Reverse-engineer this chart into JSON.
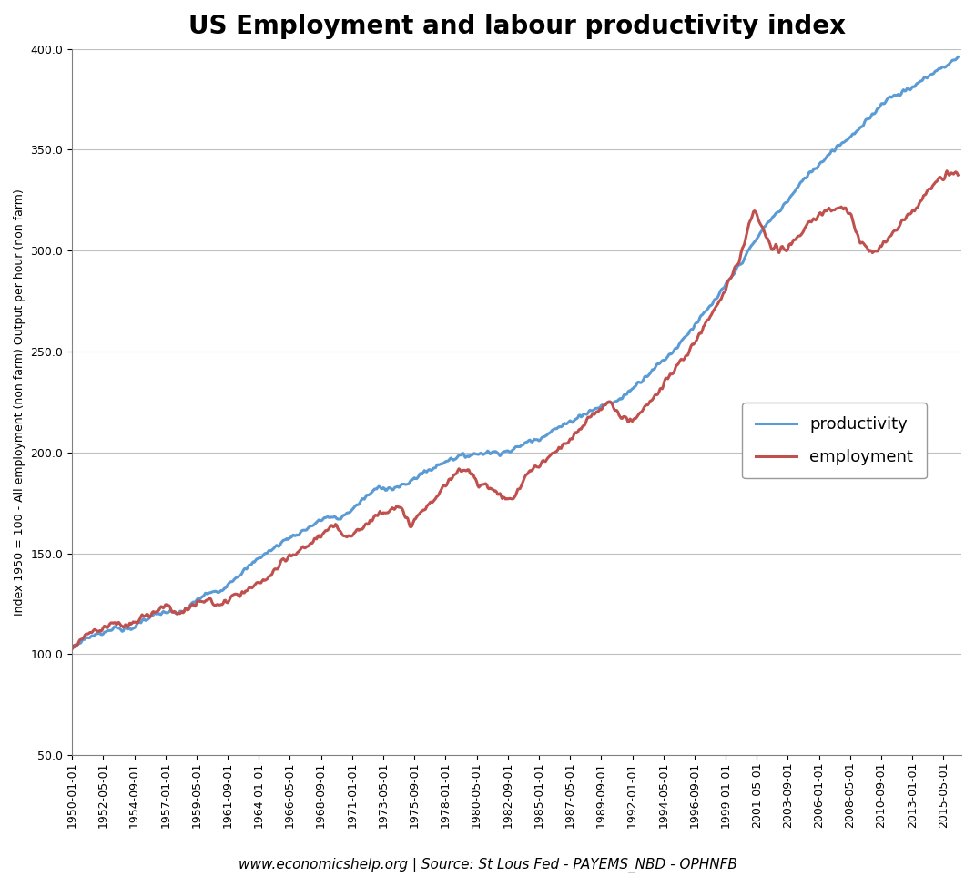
{
  "title": "US Employment and labour productivity index",
  "ylabel": "Index 1950 = 100 - All employment (non farm) Output per hour (non farm)",
  "xlabel_source": "www.economicshelp.org | Source: St Lous Fed - PAYEMS_NBD - OPHNFB",
  "ylim": [
    50.0,
    400.0
  ],
  "yticks": [
    50.0,
    100.0,
    150.0,
    200.0,
    250.0,
    300.0,
    350.0,
    400.0
  ],
  "productivity_color": "#5B9BD5",
  "employment_color": "#C0504D",
  "legend_labels": [
    "productivity",
    "employment"
  ],
  "background_color": "#FFFFFF",
  "grid_color": "#BFBFBF",
  "title_fontsize": 20,
  "label_fontsize": 9,
  "tick_fontsize": 9,
  "source_fontsize": 11,
  "xtick_labels": [
    "1950-01-01",
    "1952-05-01",
    "1954-09-01",
    "1957-01-01",
    "1959-05-01",
    "1961-09-01",
    "1964-01-01",
    "1966-05-01",
    "1968-09-01",
    "1971-01-01",
    "1973-05-01",
    "1975-09-01",
    "1978-01-01",
    "1980-05-01",
    "1982-09-01",
    "1985-01-01",
    "1987-05-01",
    "1989-09-01",
    "1992-01-01",
    "1994-05-01",
    "1996-09-01",
    "1999-01-01",
    "2001-05-01",
    "2003-09-01",
    "2006-01-01",
    "2008-05-01",
    "2010-09-01",
    "2013-01-01",
    "2015-05-01"
  ]
}
